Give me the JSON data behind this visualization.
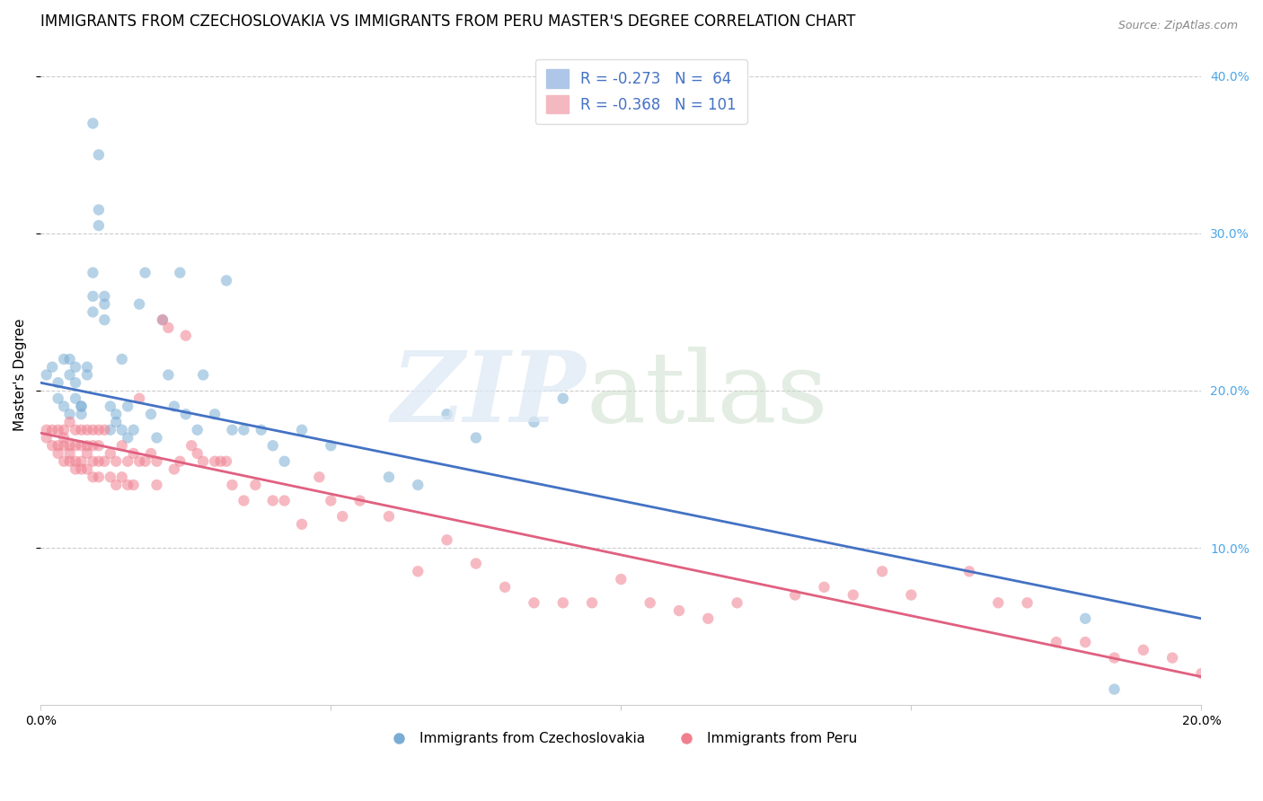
{
  "title": "IMMIGRANTS FROM CZECHOSLOVAKIA VS IMMIGRANTS FROM PERU MASTER'S DEGREE CORRELATION CHART",
  "source": "Source: ZipAtlas.com",
  "ylabel": "Master's Degree",
  "xlim": [
    0.0,
    0.2
  ],
  "ylim": [
    0.0,
    0.42
  ],
  "legend_bottom_labels": [
    "Immigrants from Czechoslovakia",
    "Immigrants from Peru"
  ],
  "blue_scatter_x": [
    0.001,
    0.002,
    0.003,
    0.003,
    0.004,
    0.004,
    0.005,
    0.005,
    0.005,
    0.006,
    0.006,
    0.006,
    0.007,
    0.007,
    0.007,
    0.008,
    0.008,
    0.009,
    0.009,
    0.009,
    0.009,
    0.01,
    0.01,
    0.01,
    0.011,
    0.011,
    0.011,
    0.012,
    0.012,
    0.013,
    0.013,
    0.014,
    0.014,
    0.015,
    0.015,
    0.016,
    0.017,
    0.018,
    0.019,
    0.02,
    0.021,
    0.022,
    0.023,
    0.024,
    0.025,
    0.027,
    0.028,
    0.03,
    0.032,
    0.033,
    0.035,
    0.038,
    0.04,
    0.042,
    0.045,
    0.05,
    0.06,
    0.065,
    0.07,
    0.075,
    0.085,
    0.09,
    0.18,
    0.185
  ],
  "blue_scatter_y": [
    0.21,
    0.215,
    0.205,
    0.195,
    0.19,
    0.22,
    0.185,
    0.21,
    0.22,
    0.215,
    0.205,
    0.195,
    0.19,
    0.185,
    0.19,
    0.21,
    0.215,
    0.275,
    0.26,
    0.25,
    0.37,
    0.35,
    0.315,
    0.305,
    0.26,
    0.255,
    0.245,
    0.175,
    0.19,
    0.18,
    0.185,
    0.175,
    0.22,
    0.17,
    0.19,
    0.175,
    0.255,
    0.275,
    0.185,
    0.17,
    0.245,
    0.21,
    0.19,
    0.275,
    0.185,
    0.175,
    0.21,
    0.185,
    0.27,
    0.175,
    0.175,
    0.175,
    0.165,
    0.155,
    0.175,
    0.165,
    0.145,
    0.14,
    0.185,
    0.17,
    0.18,
    0.195,
    0.055,
    0.01
  ],
  "pink_scatter_x": [
    0.001,
    0.001,
    0.002,
    0.002,
    0.003,
    0.003,
    0.003,
    0.004,
    0.004,
    0.004,
    0.004,
    0.005,
    0.005,
    0.005,
    0.005,
    0.006,
    0.006,
    0.006,
    0.006,
    0.007,
    0.007,
    0.007,
    0.007,
    0.008,
    0.008,
    0.008,
    0.008,
    0.009,
    0.009,
    0.009,
    0.009,
    0.01,
    0.01,
    0.01,
    0.01,
    0.011,
    0.011,
    0.012,
    0.012,
    0.013,
    0.013,
    0.014,
    0.014,
    0.015,
    0.015,
    0.016,
    0.016,
    0.017,
    0.017,
    0.018,
    0.019,
    0.02,
    0.02,
    0.021,
    0.022,
    0.023,
    0.024,
    0.025,
    0.026,
    0.027,
    0.028,
    0.03,
    0.031,
    0.032,
    0.033,
    0.035,
    0.037,
    0.04,
    0.042,
    0.045,
    0.048,
    0.05,
    0.052,
    0.055,
    0.06,
    0.065,
    0.07,
    0.075,
    0.08,
    0.085,
    0.09,
    0.095,
    0.1,
    0.105,
    0.11,
    0.115,
    0.12,
    0.13,
    0.135,
    0.14,
    0.145,
    0.15,
    0.16,
    0.165,
    0.17,
    0.175,
    0.18,
    0.185,
    0.19,
    0.195,
    0.2
  ],
  "pink_scatter_y": [
    0.17,
    0.175,
    0.175,
    0.165,
    0.175,
    0.165,
    0.16,
    0.17,
    0.175,
    0.165,
    0.155,
    0.18,
    0.165,
    0.16,
    0.155,
    0.175,
    0.165,
    0.155,
    0.15,
    0.175,
    0.165,
    0.155,
    0.15,
    0.175,
    0.165,
    0.16,
    0.15,
    0.175,
    0.165,
    0.155,
    0.145,
    0.175,
    0.165,
    0.155,
    0.145,
    0.175,
    0.155,
    0.16,
    0.145,
    0.155,
    0.14,
    0.165,
    0.145,
    0.155,
    0.14,
    0.16,
    0.14,
    0.195,
    0.155,
    0.155,
    0.16,
    0.155,
    0.14,
    0.245,
    0.24,
    0.15,
    0.155,
    0.235,
    0.165,
    0.16,
    0.155,
    0.155,
    0.155,
    0.155,
    0.14,
    0.13,
    0.14,
    0.13,
    0.13,
    0.115,
    0.145,
    0.13,
    0.12,
    0.13,
    0.12,
    0.085,
    0.105,
    0.09,
    0.075,
    0.065,
    0.065,
    0.065,
    0.08,
    0.065,
    0.06,
    0.055,
    0.065,
    0.07,
    0.075,
    0.07,
    0.085,
    0.07,
    0.085,
    0.065,
    0.065,
    0.04,
    0.04,
    0.03,
    0.035,
    0.03,
    0.02
  ],
  "blue_line_x": [
    0.0,
    0.2
  ],
  "blue_line_y": [
    0.205,
    0.055
  ],
  "pink_line_x": [
    0.0,
    0.2
  ],
  "pink_line_y": [
    0.173,
    0.018
  ],
  "blue_color": "#7aadd4",
  "pink_color": "#f08090",
  "blue_line_color": "#4472c4",
  "pink_line_color": "#e06080",
  "scatter_size": 80,
  "scatter_alpha": 0.55,
  "grid_color": "#cccccc",
  "grid_linestyle": "--",
  "background_color": "#ffffff",
  "title_fontsize": 12,
  "axis_fontsize": 11,
  "tick_fontsize": 10,
  "right_tick_color": "#4da6e8",
  "legend_R_blue": "R = -0.273",
  "legend_N_blue": "N =  64",
  "legend_R_pink": "R = -0.368",
  "legend_N_pink": "N = 101"
}
